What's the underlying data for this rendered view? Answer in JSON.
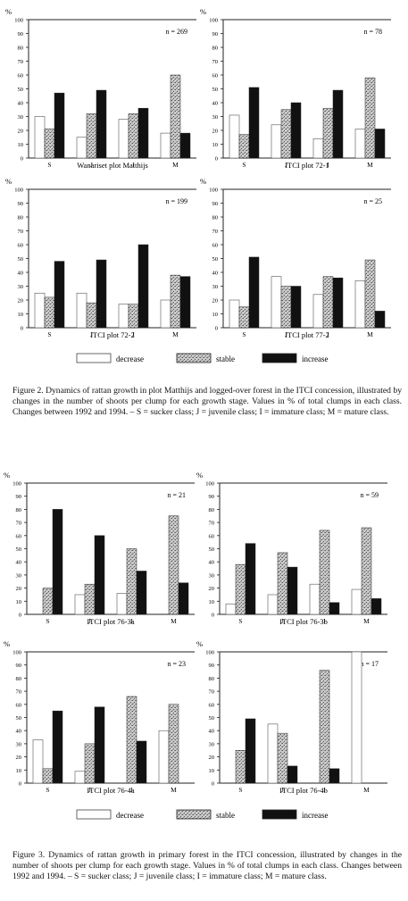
{
  "legend": [
    {
      "label": "decrease",
      "pattern": "decrease"
    },
    {
      "label": "stable",
      "pattern": "stable"
    },
    {
      "label": "increase",
      "pattern": "increase"
    }
  ],
  "figure2_caption": "Figure 2. Dynamics of rattan growth in plot Matthijs and logged-over forest in the ITCI concession, illustrated by changes in the number of shoots per clump for each growth stage. Values in % of total clumps in each class. Changes between 1992 and 1994. – S = sucker class; J = juvenile class; I = immature class; M = mature class.",
  "figure3_caption": "Figure 3. Dynamics of rattan growth in primary forest in the ITCI concession, illustrated by changes in the number of shoots per clump for each growth stage. Values in % of total clumps in each class. Changes between 1992 and 1994. – S = sucker class; J = juvenile class; I = immature class; M = mature class.",
  "colors": {
    "decrease": "#ffffff",
    "stable": "#b8b8b8",
    "increase": "#111111",
    "axis": "#222222"
  },
  "chart_data": [
    {
      "type": "bar",
      "title": "Wanariset plot Matthijs",
      "n_label": "n = 269",
      "ylabel": "%",
      "ylim": [
        0,
        100
      ],
      "yticks": [
        0,
        10,
        20,
        30,
        40,
        50,
        60,
        70,
        80,
        90,
        100
      ],
      "categories": [
        "S",
        "J",
        "I",
        "M"
      ],
      "series": [
        {
          "name": "decrease",
          "values": [
            30,
            15,
            28,
            18
          ]
        },
        {
          "name": "stable",
          "values": [
            21,
            32,
            32,
            60
          ]
        },
        {
          "name": "increase",
          "values": [
            47,
            49,
            36,
            18
          ]
        }
      ]
    },
    {
      "type": "bar",
      "title": "ITCI plot 72-1",
      "n_label": "n = 78",
      "ylabel": "%",
      "ylim": [
        0,
        100
      ],
      "yticks": [
        0,
        10,
        20,
        30,
        40,
        50,
        60,
        70,
        80,
        90,
        100
      ],
      "categories": [
        "S",
        "J",
        "I",
        "M"
      ],
      "series": [
        {
          "name": "decrease",
          "values": [
            31,
            24,
            14,
            21
          ]
        },
        {
          "name": "stable",
          "values": [
            17,
            35,
            36,
            58
          ]
        },
        {
          "name": "increase",
          "values": [
            51,
            40,
            49,
            21
          ]
        }
      ]
    },
    {
      "type": "bar",
      "title": "ITCI plot 72-2",
      "n_label": "n = 199",
      "ylabel": "%",
      "ylim": [
        0,
        100
      ],
      "yticks": [
        0,
        10,
        20,
        30,
        40,
        50,
        60,
        70,
        80,
        90,
        100
      ],
      "categories": [
        "S",
        "J",
        "I",
        "M"
      ],
      "series": [
        {
          "name": "decrease",
          "values": [
            25,
            25,
            17,
            20
          ]
        },
        {
          "name": "stable",
          "values": [
            22,
            18,
            17,
            38
          ]
        },
        {
          "name": "increase",
          "values": [
            48,
            49,
            60,
            37
          ]
        }
      ]
    },
    {
      "type": "bar",
      "title": "ITCI plot 77-2",
      "n_label": "n = 25",
      "ylabel": "%",
      "ylim": [
        0,
        100
      ],
      "yticks": [
        0,
        10,
        20,
        30,
        40,
        50,
        60,
        70,
        80,
        90,
        100
      ],
      "categories": [
        "S",
        "J",
        "I",
        "M"
      ],
      "series": [
        {
          "name": "decrease",
          "values": [
            20,
            37,
            24,
            34
          ]
        },
        {
          "name": "stable",
          "values": [
            15,
            30,
            37,
            49
          ]
        },
        {
          "name": "increase",
          "values": [
            51,
            30,
            36,
            12
          ]
        }
      ]
    },
    {
      "type": "bar",
      "title": "ITCI plot 76-3a",
      "n_label": "n = 21",
      "ylabel": "%",
      "ylim": [
        0,
        100
      ],
      "yticks": [
        0,
        10,
        20,
        30,
        40,
        50,
        60,
        70,
        80,
        90,
        100
      ],
      "categories": [
        "S",
        "J",
        "I",
        "M"
      ],
      "series": [
        {
          "name": "decrease",
          "values": [
            0,
            15,
            16,
            0
          ]
        },
        {
          "name": "stable",
          "values": [
            20,
            23,
            50,
            75
          ]
        },
        {
          "name": "increase",
          "values": [
            80,
            60,
            33,
            24
          ]
        }
      ]
    },
    {
      "type": "bar",
      "title": "ITCI plot 76-3b",
      "n_label": "n = 59",
      "ylabel": "%",
      "ylim": [
        0,
        100
      ],
      "yticks": [
        0,
        10,
        20,
        30,
        40,
        50,
        60,
        70,
        80,
        90,
        100
      ],
      "categories": [
        "S",
        "J",
        "I",
        "M"
      ],
      "series": [
        {
          "name": "decrease",
          "values": [
            8,
            15,
            23,
            19
          ]
        },
        {
          "name": "stable",
          "values": [
            38,
            47,
            64,
            66
          ]
        },
        {
          "name": "increase",
          "values": [
            54,
            36,
            9,
            12
          ]
        }
      ]
    },
    {
      "type": "bar",
      "title": "ITCI plot 76-4a",
      "n_label": "n = 23",
      "ylabel": "%",
      "ylim": [
        0,
        100
      ],
      "yticks": [
        0,
        10,
        20,
        30,
        40,
        50,
        60,
        70,
        80,
        90,
        100
      ],
      "categories": [
        "S",
        "J",
        "I",
        "M"
      ],
      "series": [
        {
          "name": "decrease",
          "values": [
            33,
            9,
            0,
            40
          ]
        },
        {
          "name": "stable",
          "values": [
            11,
            30,
            66,
            60
          ]
        },
        {
          "name": "increase",
          "values": [
            55,
            58,
            32,
            0
          ]
        }
      ]
    },
    {
      "type": "bar",
      "title": "ITCI plot 76-4b",
      "n_label": "n = 17",
      "ylabel": "%",
      "ylim": [
        0,
        100
      ],
      "yticks": [
        0,
        10,
        20,
        30,
        40,
        50,
        60,
        70,
        80,
        90,
        100
      ],
      "categories": [
        "S",
        "J",
        "I",
        "M"
      ],
      "series": [
        {
          "name": "decrease",
          "values": [
            0,
            45,
            0,
            100
          ]
        },
        {
          "name": "stable",
          "values": [
            25,
            38,
            86,
            0
          ]
        },
        {
          "name": "increase",
          "values": [
            49,
            13,
            11,
            0
          ]
        }
      ]
    }
  ]
}
